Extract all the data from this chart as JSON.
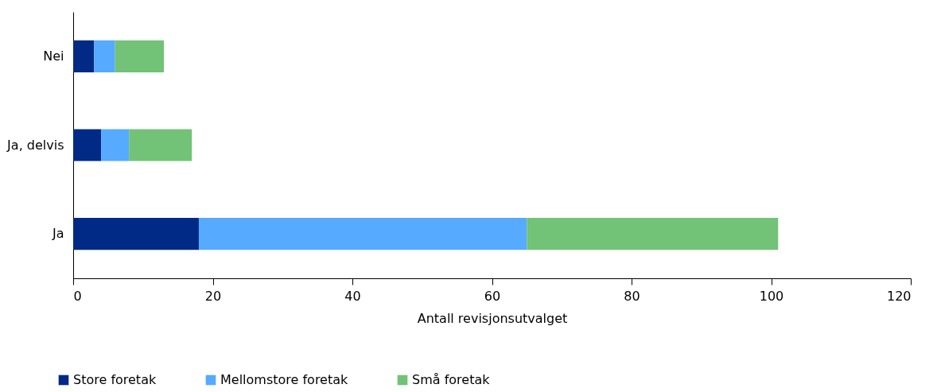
{
  "chart_data": {
    "type": "bar",
    "orientation": "horizontal",
    "stacked": true,
    "categories": [
      "Nei",
      "Ja, delvis",
      "Ja"
    ],
    "series": [
      {
        "name": "Store foretak",
        "color": "#002a85",
        "values": [
          3,
          4,
          18
        ]
      },
      {
        "name": "Mellomstore foretak",
        "color": "#56aaff",
        "values": [
          3,
          4,
          47
        ]
      },
      {
        "name": "Små foretak",
        "color": "#72c277",
        "values": [
          7,
          9,
          36
        ]
      }
    ],
    "xlim": [
      0,
      120
    ],
    "xticks": [
      0,
      20,
      40,
      60,
      80,
      100,
      120
    ],
    "xlabel": "Antall revisjonsutvalget",
    "legend": "bottom"
  }
}
